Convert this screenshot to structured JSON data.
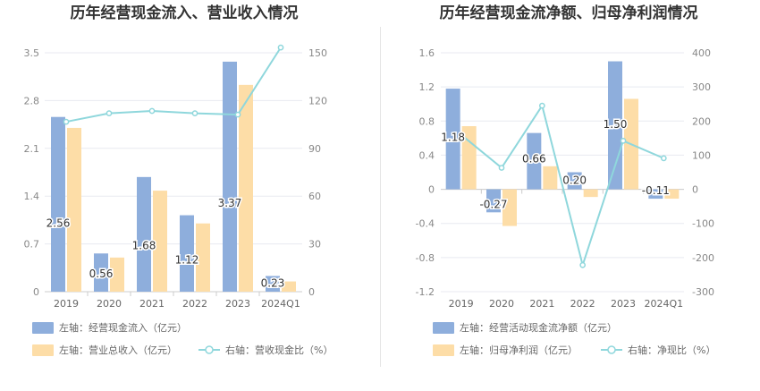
{
  "colors": {
    "bar_blue": "#8eaedc",
    "bar_orange": "#fddda7",
    "line_cyan": "#8fd7dc",
    "grid": "#e8eaf0",
    "axis": "#cccccc"
  },
  "chart_data": [
    {
      "type": "bar",
      "title": "历年经营现金流入、营业收入情况",
      "categories": [
        "2019",
        "2020",
        "2021",
        "2022",
        "2023",
        "2024Q1"
      ],
      "left_axis": {
        "ticks": [
          "0",
          "0.7",
          "1.4",
          "2.1",
          "2.8",
          "3.5"
        ],
        "ylim": [
          0,
          3.5
        ]
      },
      "right_axis": {
        "ticks": [
          "0",
          "30",
          "60",
          "90",
          "120",
          "150"
        ],
        "ylim": [
          0,
          150
        ]
      },
      "series": [
        {
          "name": "左轴：经营现金流入（亿元）",
          "kind": "bar",
          "axis": "left",
          "color": "#8eaedc",
          "values": [
            2.56,
            0.56,
            1.68,
            1.12,
            3.37,
            0.23
          ],
          "labels": [
            "2.56",
            "0.56",
            "1.68",
            "1.12",
            "3.37",
            "0.23"
          ]
        },
        {
          "name": "左轴：营业总收入（亿元）",
          "kind": "bar",
          "axis": "left",
          "color": "#fddda7",
          "values": [
            2.4,
            0.5,
            1.48,
            1.0,
            3.03,
            0.15
          ]
        },
        {
          "name": "右轴：营收现金比（%）",
          "kind": "line",
          "axis": "right",
          "color": "#8fd7dc",
          "values": [
            106.7,
            112.0,
            113.5,
            112.0,
            111.2,
            153.3
          ]
        }
      ],
      "legend": [
        {
          "label": "左轴：经营现金流入（亿元）",
          "kind": "bar",
          "color": "#8eaedc"
        },
        {
          "label": "左轴：营业总收入（亿元）",
          "kind": "bar",
          "color": "#fddda7"
        },
        {
          "label": "右轴：营收现金比（%）",
          "kind": "line",
          "color": "#8fd7dc"
        }
      ]
    },
    {
      "type": "bar",
      "title": "历年经营现金流净额、归母净利润情况",
      "categories": [
        "2019",
        "2020",
        "2021",
        "2022",
        "2023",
        "2024Q1"
      ],
      "left_axis": {
        "ticks": [
          "-1.2",
          "-0.8",
          "-0.4",
          "0",
          "0.4",
          "0.8",
          "1.2",
          "1.6"
        ],
        "ylim": [
          -1.2,
          1.6
        ]
      },
      "right_axis": {
        "ticks": [
          "-300",
          "-200",
          "-100",
          "0",
          "100",
          "200",
          "300",
          "400"
        ],
        "ylim": [
          -300,
          400
        ]
      },
      "series": [
        {
          "name": "左轴：经营活动现金流净额（亿元）",
          "kind": "bar",
          "axis": "left",
          "color": "#8eaedc",
          "values": [
            1.18,
            -0.27,
            0.66,
            0.2,
            1.5,
            -0.11
          ],
          "labels": [
            "1.18",
            "-0.27",
            "0.66",
            "0.20",
            "1.50",
            "-0.11"
          ]
        },
        {
          "name": "左轴：归母净利润（亿元）",
          "kind": "bar",
          "axis": "left",
          "color": "#fddda7",
          "values": [
            0.74,
            -0.43,
            0.27,
            -0.09,
            1.06,
            -0.11
          ]
        },
        {
          "name": "右轴：净现比（%）",
          "kind": "line",
          "axis": "right",
          "color": "#8fd7dc",
          "values": [
            160,
            63,
            245,
            -222,
            142,
            91
          ]
        }
      ],
      "legend": [
        {
          "label": "左轴：经营活动现金流净额（亿元）",
          "kind": "bar",
          "color": "#8eaedc"
        },
        {
          "label": "左轴：归母净利润（亿元）",
          "kind": "bar",
          "color": "#fddda7"
        },
        {
          "label": "右轴：净现比（%）",
          "kind": "line",
          "color": "#8fd7dc"
        }
      ]
    }
  ]
}
